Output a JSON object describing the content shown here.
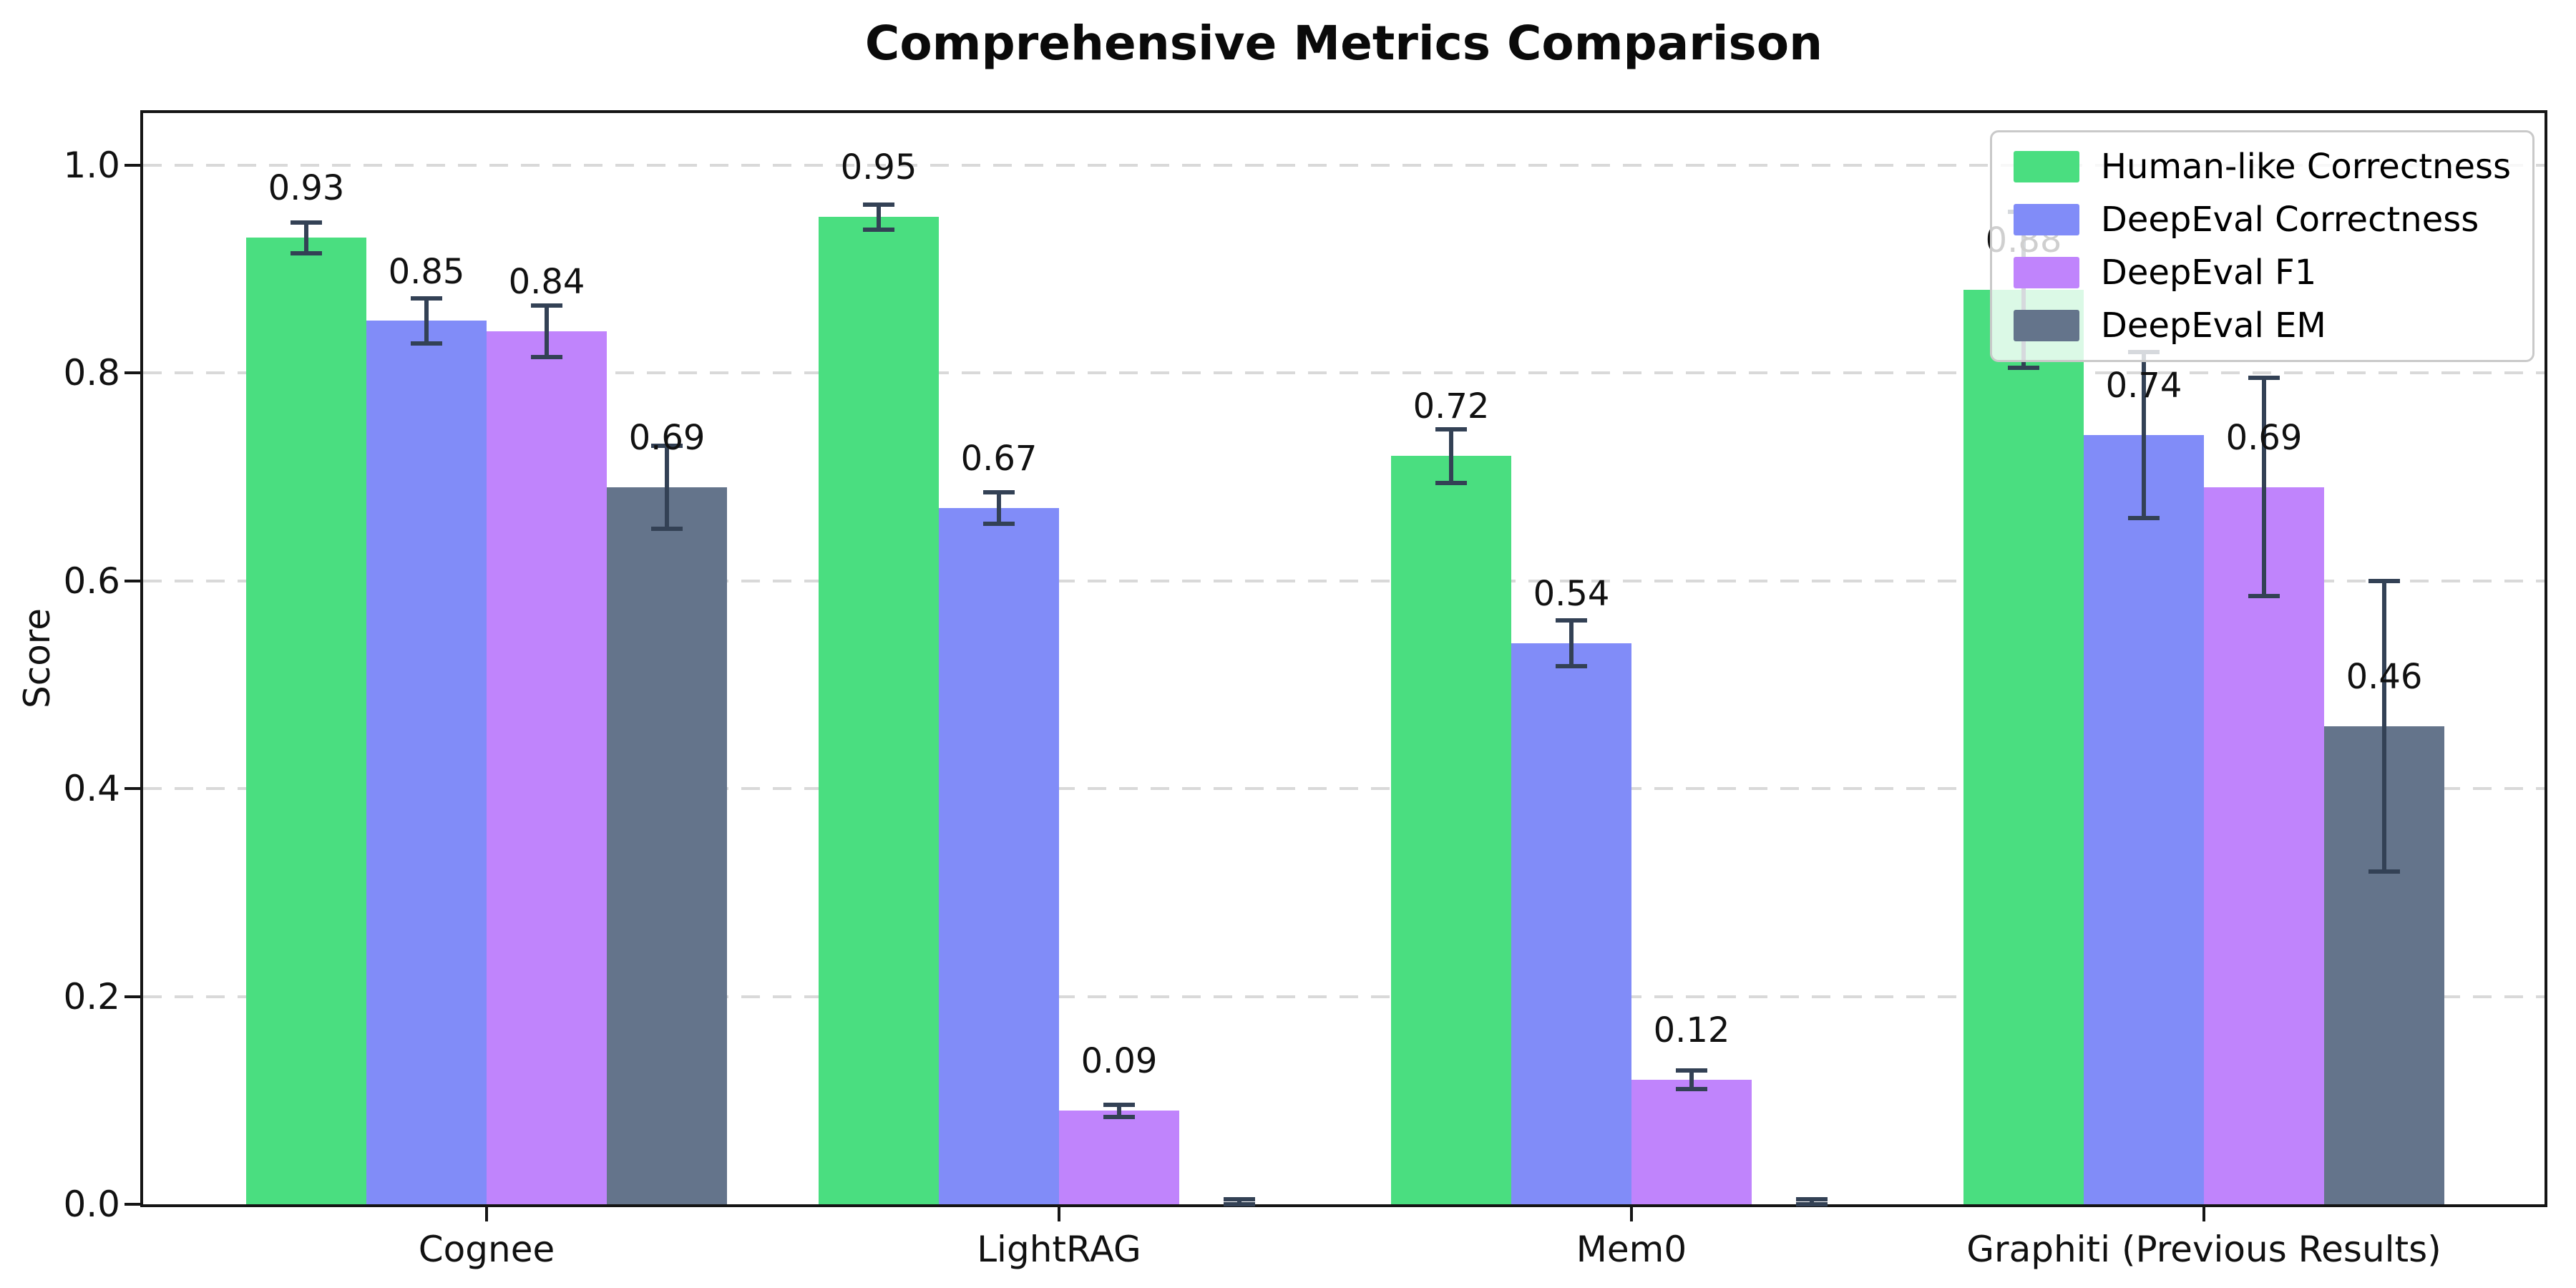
{
  "chart_data": {
    "type": "bar",
    "title": "Comprehensive Metrics Comparison",
    "ylabel": "Score",
    "categories": [
      "Cognee",
      "LightRAG",
      "Mem0",
      "Graphiti (Previous Results)"
    ],
    "series": [
      {
        "name": "Human-like Correctness",
        "color": "#4ade80",
        "values": [
          0.93,
          0.95,
          0.72,
          0.88
        ],
        "errors": [
          0.015,
          0.012,
          0.026,
          0.075
        ],
        "labels": [
          "0.93",
          "0.95",
          "0.72",
          "0.88"
        ]
      },
      {
        "name": "DeepEval Correctness",
        "color": "#818cf8",
        "values": [
          0.85,
          0.67,
          0.54,
          0.74
        ],
        "errors": [
          0.022,
          0.015,
          0.022,
          0.08
        ],
        "labels": [
          "0.85",
          "0.67",
          "0.54",
          "0.74"
        ]
      },
      {
        "name": "DeepEval F1",
        "color": "#c084fc",
        "values": [
          0.84,
          0.09,
          0.12,
          0.69
        ],
        "errors": [
          0.025,
          0.006,
          0.009,
          0.105
        ],
        "labels": [
          "0.84",
          "0.09",
          "0.12",
          "0.69"
        ]
      },
      {
        "name": "DeepEval EM",
        "color": "#64748b",
        "values": [
          0.69,
          0.0,
          0.0,
          0.46
        ],
        "errors": [
          0.04,
          0.005,
          0.005,
          0.14
        ],
        "labels": [
          "0.69",
          null,
          null,
          "0.46"
        ]
      }
    ],
    "yticks": [
      0.0,
      0.2,
      0.4,
      0.6,
      0.8,
      1.0
    ],
    "ytick_labels": [
      "0.0",
      "0.2",
      "0.4",
      "0.6",
      "0.8",
      "1.0"
    ],
    "ylim": [
      0,
      1.05
    ],
    "grid": {
      "axis": "y",
      "style": "dashed",
      "color": "#d9d9d9"
    },
    "legend": {
      "position": "upper right"
    },
    "error_bar_color": "#334155",
    "colors": {
      "background": "#ffffff",
      "spine": "#151515",
      "text": "#111111"
    }
  }
}
